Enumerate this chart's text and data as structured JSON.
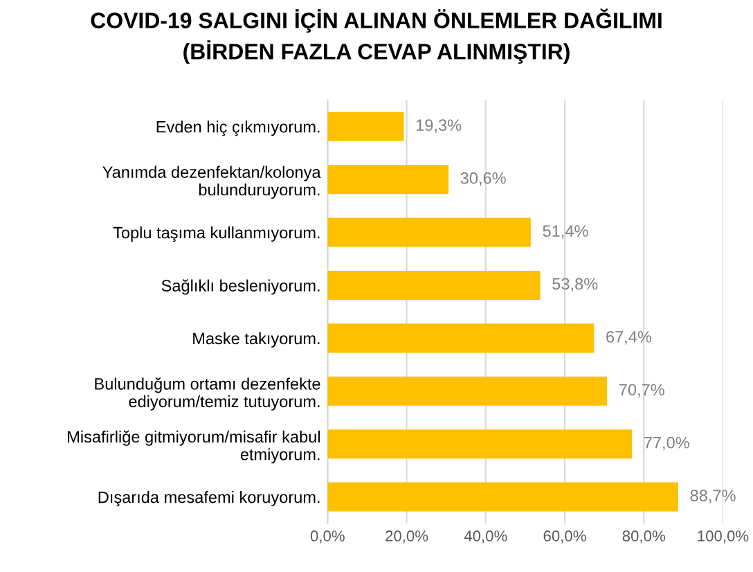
{
  "chart_data": {
    "type": "bar",
    "orientation": "horizontal",
    "title": "COVID-19 SALGINI İÇİN ALINAN ÖNLEMLER DAĞILIMI\n(BİRDEN FAZLA CEVAP ALINMIŞTIR)",
    "categories": [
      "Evden hiç çıkmıyorum.",
      "Yanımda dezenfektan/kolonya\nbulunduruyorum.",
      "Toplu taşıma kullanmıyorum.",
      "Sağlıklı besleniyorum.",
      "Maske takıyorum.",
      "Bulunduğum ortamı dezenfekte\nediyorum/temiz tutuyorum.",
      "Misafirliğe gitmiyorum/misafir kabul\netmiyorum.",
      "Dışarıda mesafemi koruyorum."
    ],
    "values": [
      19.3,
      30.6,
      51.4,
      53.8,
      67.4,
      70.7,
      77.0,
      88.7
    ],
    "value_labels": [
      "19,3%",
      "30,6%",
      "51,4%",
      "53,8%",
      "67,4%",
      "70,7%",
      "77,0%",
      "88,7%"
    ],
    "color": "#ffc000",
    "xlim": [
      0,
      100
    ],
    "xticks": [
      {
        "value": 0,
        "label": "0,0%"
      },
      {
        "value": 20,
        "label": "20,0%"
      },
      {
        "value": 40,
        "label": "40,0%"
      },
      {
        "value": 60,
        "label": "60,0%"
      },
      {
        "value": 80,
        "label": "80,0%"
      },
      {
        "value": 100,
        "label": "100,0%"
      }
    ],
    "grid": "x"
  }
}
